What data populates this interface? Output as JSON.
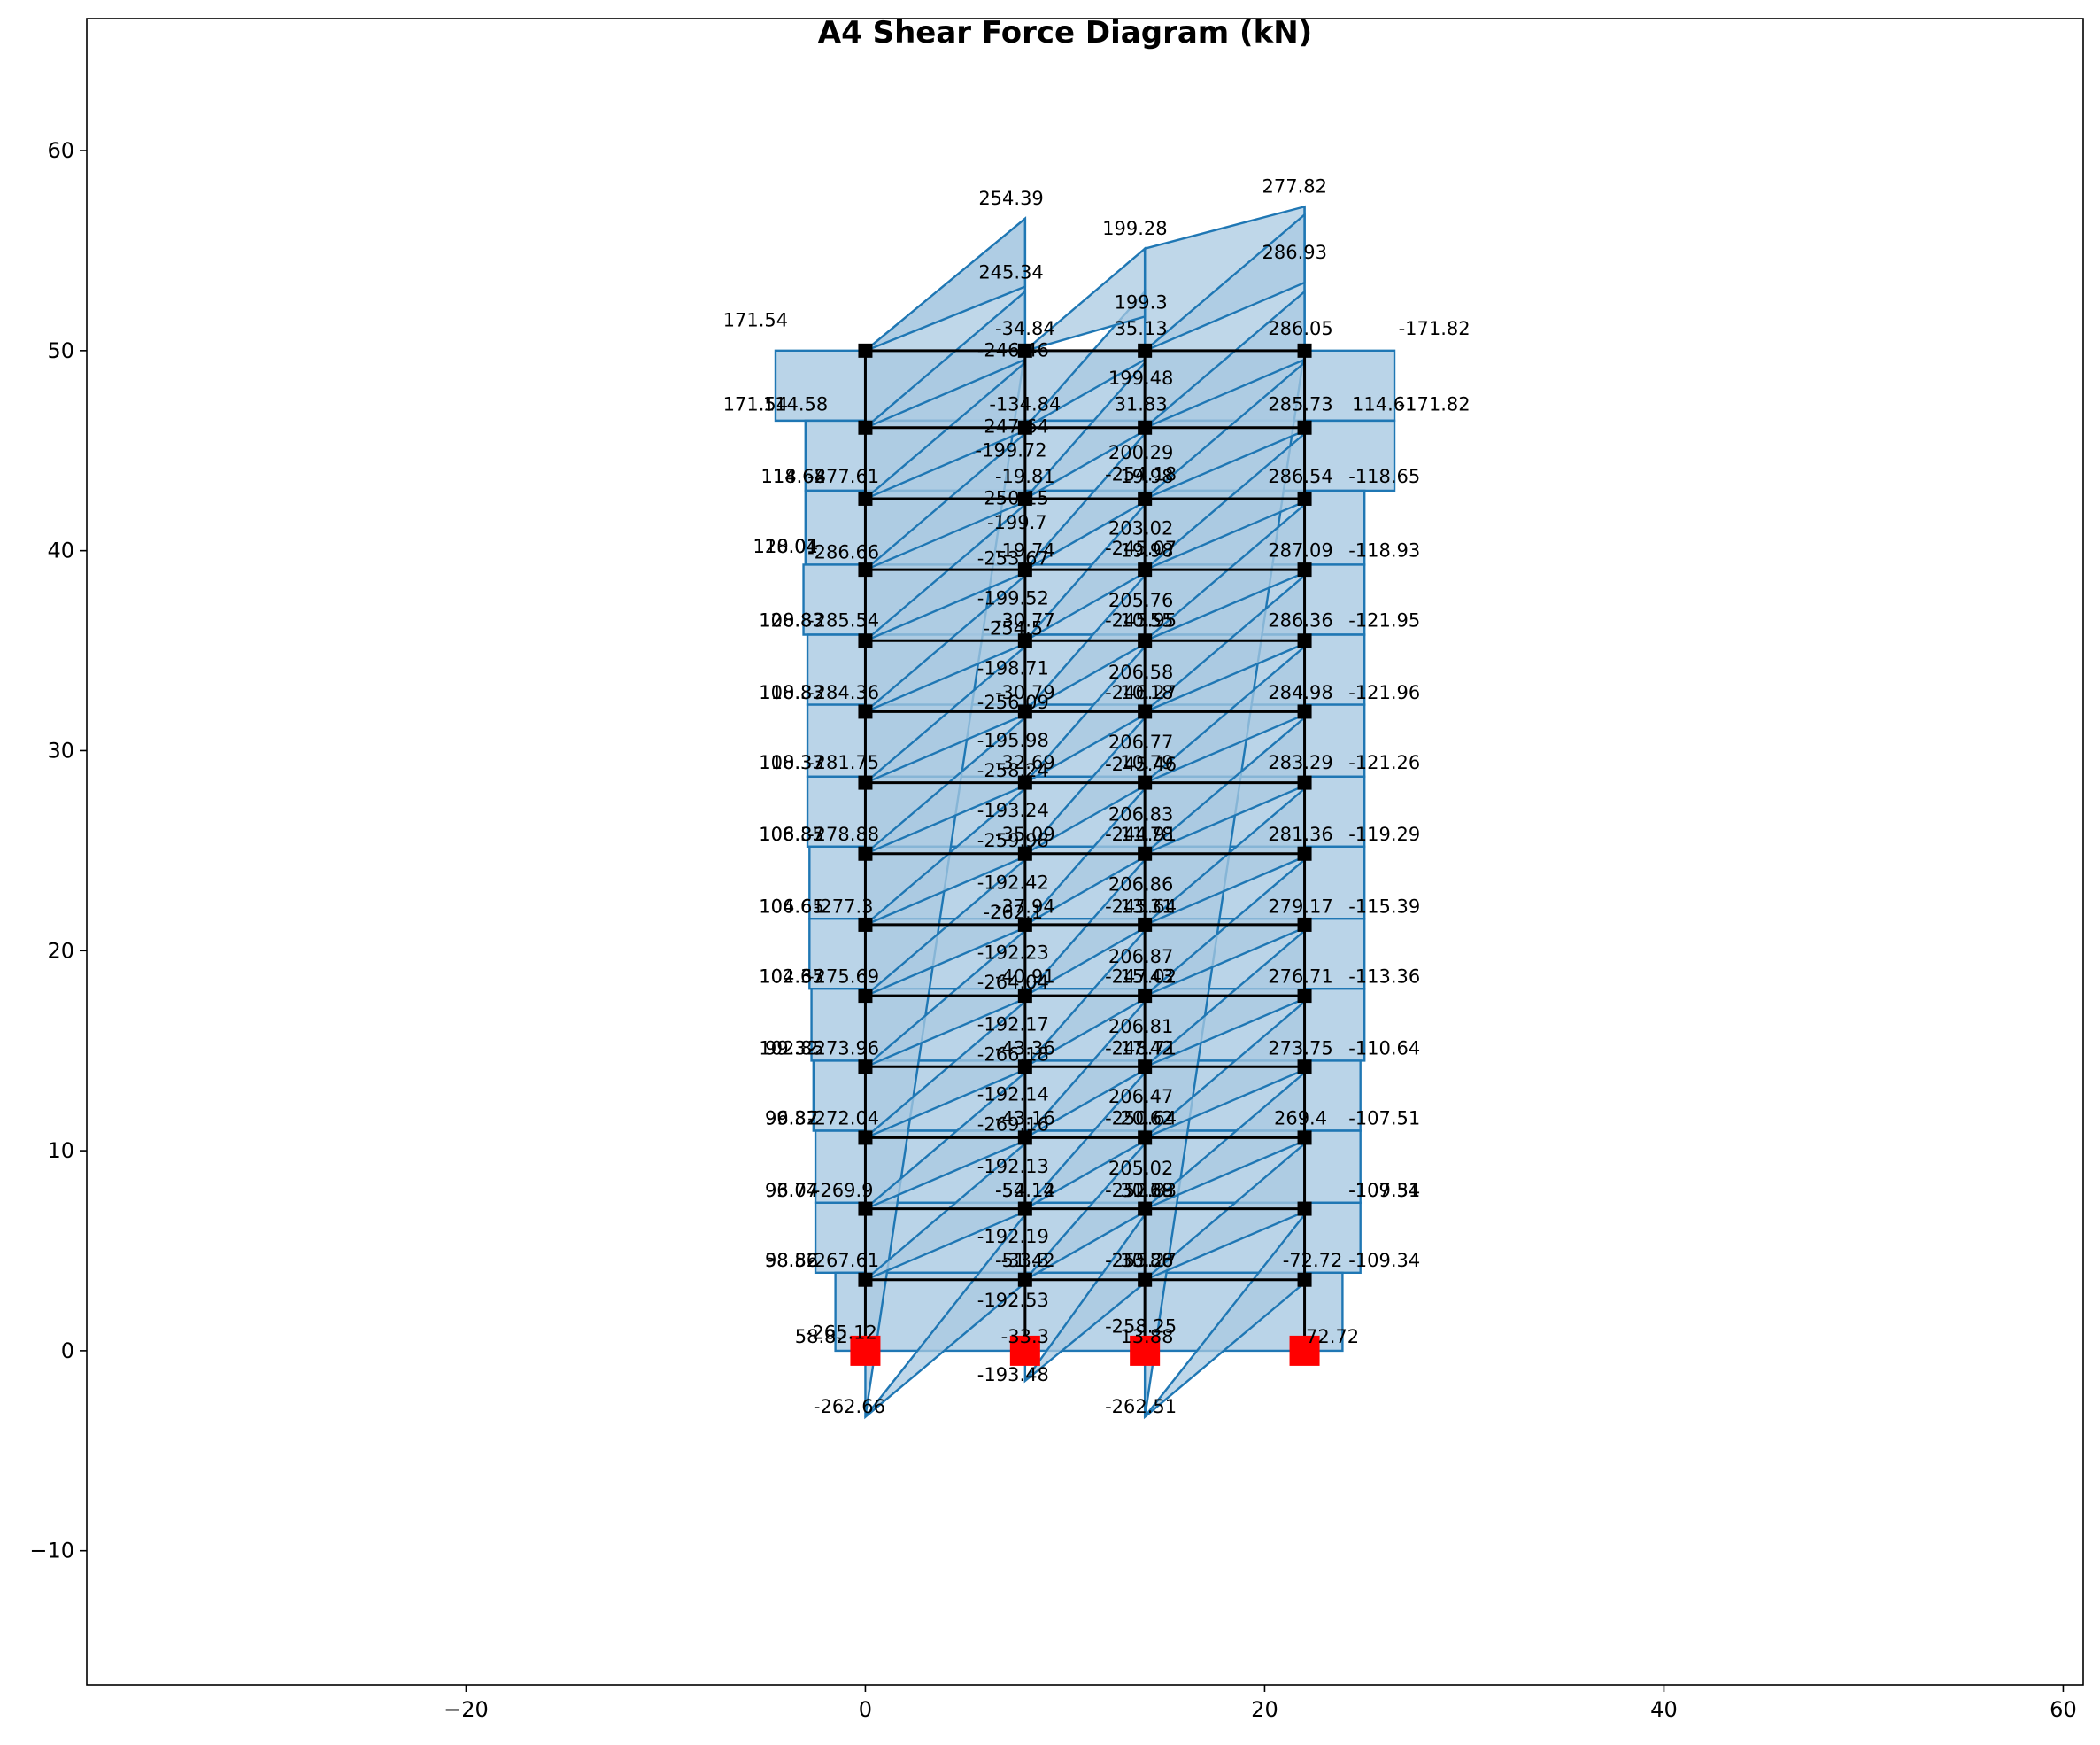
{
  "chart_data": {
    "type": "structural-shear-force-diagram",
    "title": "A4 Shear Force Diagram (kN)",
    "xlim": [
      -39,
      61
    ],
    "ylim": [
      -16.7,
      66.6
    ],
    "x_ticks": [
      -20,
      0,
      20,
      40,
      60
    ],
    "y_ticks": [
      -10,
      0,
      10,
      20,
      30,
      40,
      50,
      60
    ],
    "column_lines_x": [
      0,
      8,
      14,
      22
    ],
    "floor_levels_y": [
      3.55,
      7.1,
      10.65,
      14.2,
      17.75,
      21.3,
      24.85,
      28.4,
      31.95,
      35.5,
      39.05,
      42.6,
      46.15,
      50.0
    ],
    "supports": [
      {
        "x": 0,
        "y": 0
      },
      {
        "x": 8,
        "y": 0
      },
      {
        "x": 14,
        "y": 0
      },
      {
        "x": 22,
        "y": 0
      }
    ],
    "beam_shear_diagrams": [
      {
        "span_x": [
          -4.5,
          26.5
        ],
        "y_base": 50.0,
        "y_top": 50.0,
        "y_bottom": 46.5
      },
      {
        "span_x": [
          -3.0,
          26.5
        ],
        "y_base": 46.15,
        "y_top": 46.5,
        "y_bottom": 43.0
      },
      {
        "span_x": [
          -3.0,
          25.0
        ],
        "y_base": 42.6,
        "y_top": 43.0,
        "y_bottom": 39.3
      },
      {
        "span_x": [
          -3.1,
          25.0
        ],
        "y_base": 39.05,
        "y_top": 39.3,
        "y_bottom": 35.8
      },
      {
        "span_x": [
          -2.9,
          25.0
        ],
        "y_base": 35.5,
        "y_top": 35.8,
        "y_bottom": 32.3
      },
      {
        "span_x": [
          -2.9,
          25.0
        ],
        "y_base": 31.95,
        "y_top": 32.3,
        "y_bottom": 28.7
      },
      {
        "span_x": [
          -2.9,
          25.0
        ],
        "y_base": 28.4,
        "y_top": 28.7,
        "y_bottom": 25.2
      },
      {
        "span_x": [
          -2.8,
          25.0
        ],
        "y_base": 24.85,
        "y_top": 25.2,
        "y_bottom": 21.6
      },
      {
        "span_x": [
          -2.8,
          25.0
        ],
        "y_base": 21.3,
        "y_top": 21.6,
        "y_bottom": 18.1
      },
      {
        "span_x": [
          -2.7,
          25.0
        ],
        "y_base": 17.75,
        "y_top": 18.1,
        "y_bottom": 14.5
      },
      {
        "span_x": [
          -2.6,
          24.8
        ],
        "y_base": 14.2,
        "y_top": 14.5,
        "y_bottom": 11.0
      },
      {
        "span_x": [
          -2.5,
          24.8
        ],
        "y_base": 10.65,
        "y_top": 11.0,
        "y_bottom": 7.4
      },
      {
        "span_x": [
          -2.5,
          24.8
        ],
        "y_base": 7.1,
        "y_top": 7.4,
        "y_bottom": 3.9
      },
      {
        "span_x": [
          -1.5,
          23.9
        ],
        "y_base": 3.55,
        "y_top": 3.9,
        "y_bottom": 0.0
      }
    ],
    "column_shear_diagrams": [
      {
        "x": 0,
        "bottom_y": -3.3,
        "top_y": 50.0,
        "top_value": 171.54,
        "bottom_value": -262.66
      },
      {
        "x": 8,
        "bottom_y": -1.5,
        "top_y": 56.6,
        "top_value": 254.39,
        "bottom_value": -193.48
      },
      {
        "x": 14,
        "bottom_y": -3.3,
        "top_y": 55.1,
        "top_value": 199.28,
        "bottom_value": -262.51
      },
      {
        "x": 22,
        "bottom_y": 3.55,
        "top_y": 57.2,
        "top_value": 277.82,
        "bottom_value": 72.72
      }
    ],
    "annotations": [
      {
        "text": "171.54",
        "x": -5.5,
        "y": 51.2
      },
      {
        "text": "254.39",
        "x": 7.3,
        "y": 57.3
      },
      {
        "text": "199.28",
        "x": 13.5,
        "y": 55.8
      },
      {
        "text": "277.82",
        "x": 21.5,
        "y": 57.9
      },
      {
        "text": "245.34",
        "x": 7.3,
        "y": 53.6
      },
      {
        "text": "286.93",
        "x": 21.5,
        "y": 54.6
      },
      {
        "text": "199.3",
        "x": 13.8,
        "y": 52.1
      },
      {
        "text": "-34.84",
        "x": 8.0,
        "y": 50.8
      },
      {
        "text": "35.13",
        "x": 13.8,
        "y": 50.8
      },
      {
        "text": "-246.46",
        "x": 7.4,
        "y": 49.7
      },
      {
        "text": "286.05",
        "x": 21.8,
        "y": 50.8
      },
      {
        "text": "-171.82",
        "x": 28.5,
        "y": 50.8
      },
      {
        "text": "171.54",
        "x": -5.5,
        "y": 47.0
      },
      {
        "text": "114.58",
        "x": -3.5,
        "y": 47.0
      },
      {
        "text": "-134.84",
        "x": 8.0,
        "y": 47.0
      },
      {
        "text": "31.83",
        "x": 13.8,
        "y": 47.0
      },
      {
        "text": "199.48",
        "x": 13.8,
        "y": 48.3
      },
      {
        "text": "-247.64",
        "x": 7.4,
        "y": 45.9
      },
      {
        "text": "285.73",
        "x": 21.8,
        "y": 47.0
      },
      {
        "text": "114.61",
        "x": 26.0,
        "y": 47.0
      },
      {
        "text": "-171.82",
        "x": 28.5,
        "y": 47.0
      },
      {
        "text": "-199.72",
        "x": 7.3,
        "y": 44.7
      },
      {
        "text": "200.29",
        "x": 13.8,
        "y": 44.6
      },
      {
        "text": "-254.18",
        "x": 13.8,
        "y": 43.5
      },
      {
        "text": "118.68",
        "x": -3.6,
        "y": 43.4
      },
      {
        "text": "114.64",
        "x": -3.6,
        "y": 43.4
      },
      {
        "text": "-277.61",
        "x": -1.1,
        "y": 43.4
      },
      {
        "text": "-19.81",
        "x": 8.0,
        "y": 43.4
      },
      {
        "text": "-250.15",
        "x": 7.4,
        "y": 42.3
      },
      {
        "text": "19.98",
        "x": 14.1,
        "y": 43.4
      },
      {
        "text": "286.54",
        "x": 21.8,
        "y": 43.4
      },
      {
        "text": "-118.65",
        "x": 26.0,
        "y": 43.4
      },
      {
        "text": "-199.7",
        "x": 7.6,
        "y": 41.1
      },
      {
        "text": "203.02",
        "x": 13.8,
        "y": 40.8
      },
      {
        "text": "-245.07",
        "x": 13.8,
        "y": 39.8
      },
      {
        "text": "120.04",
        "x": -4.0,
        "y": 39.9
      },
      {
        "text": "118.01",
        "x": -4.0,
        "y": 39.9
      },
      {
        "text": "-286.66",
        "x": -1.1,
        "y": 39.6
      },
      {
        "text": "-19.74",
        "x": 8.0,
        "y": 39.7
      },
      {
        "text": "-253.67",
        "x": 7.4,
        "y": 39.3
      },
      {
        "text": "19.98",
        "x": 14.1,
        "y": 39.7
      },
      {
        "text": "287.09",
        "x": 21.8,
        "y": 39.7
      },
      {
        "text": "-118.93",
        "x": 26.0,
        "y": 39.7
      },
      {
        "text": "-199.52",
        "x": 7.4,
        "y": 37.3
      },
      {
        "text": "205.76",
        "x": 13.8,
        "y": 37.2
      },
      {
        "text": "-245.95",
        "x": 13.8,
        "y": 36.2
      },
      {
        "text": "120.83",
        "x": -3.7,
        "y": 36.2
      },
      {
        "text": "108.83",
        "x": -3.7,
        "y": 36.2
      },
      {
        "text": "-285.54",
        "x": -1.1,
        "y": 36.2
      },
      {
        "text": "-30.77",
        "x": 8.0,
        "y": 36.2
      },
      {
        "text": "-254.5",
        "x": 7.4,
        "y": 35.8
      },
      {
        "text": "10.55",
        "x": 14.1,
        "y": 36.2
      },
      {
        "text": "286.36",
        "x": 21.8,
        "y": 36.2
      },
      {
        "text": "-121.95",
        "x": 26.0,
        "y": 36.2
      },
      {
        "text": "-198.71",
        "x": 7.4,
        "y": 33.8
      },
      {
        "text": "206.58",
        "x": 13.8,
        "y": 33.6
      },
      {
        "text": "-246.27",
        "x": 13.8,
        "y": 32.6
      },
      {
        "text": "110.33",
        "x": -3.7,
        "y": 32.6
      },
      {
        "text": "108.83",
        "x": -3.7,
        "y": 32.6
      },
      {
        "text": "-284.36",
        "x": -1.1,
        "y": 32.6
      },
      {
        "text": "-30.79",
        "x": 8.0,
        "y": 32.6
      },
      {
        "text": "-256.09",
        "x": 7.4,
        "y": 32.1
      },
      {
        "text": "10.18",
        "x": 14.1,
        "y": 32.6
      },
      {
        "text": "284.98",
        "x": 21.8,
        "y": 32.6
      },
      {
        "text": "-121.96",
        "x": 26.0,
        "y": 32.6
      },
      {
        "text": "-195.98",
        "x": 7.4,
        "y": 30.2
      },
      {
        "text": "206.77",
        "x": 13.8,
        "y": 30.1
      },
      {
        "text": "-245.46",
        "x": 13.8,
        "y": 29.0
      },
      {
        "text": "110.37",
        "x": -3.7,
        "y": 29.1
      },
      {
        "text": "108.33",
        "x": -3.7,
        "y": 29.1
      },
      {
        "text": "-281.75",
        "x": -1.1,
        "y": 29.1
      },
      {
        "text": "-32.69",
        "x": 8.0,
        "y": 29.1
      },
      {
        "text": "-258.24",
        "x": 7.4,
        "y": 28.7
      },
      {
        "text": "10.79",
        "x": 14.1,
        "y": 29.1
      },
      {
        "text": "283.29",
        "x": 21.8,
        "y": 29.1
      },
      {
        "text": "-121.26",
        "x": 26.0,
        "y": 29.1
      },
      {
        "text": "-193.24",
        "x": 7.4,
        "y": 26.7
      },
      {
        "text": "206.83",
        "x": 13.8,
        "y": 26.5
      },
      {
        "text": "-244.91",
        "x": 13.8,
        "y": 25.5
      },
      {
        "text": "108.85",
        "x": -3.7,
        "y": 25.5
      },
      {
        "text": "106.37",
        "x": -3.7,
        "y": 25.5
      },
      {
        "text": "-278.88",
        "x": -1.1,
        "y": 25.5
      },
      {
        "text": "-35.09",
        "x": 8.0,
        "y": 25.5
      },
      {
        "text": "-259.98",
        "x": 7.4,
        "y": 25.2
      },
      {
        "text": "11.78",
        "x": 14.1,
        "y": 25.5
      },
      {
        "text": "281.36",
        "x": 21.8,
        "y": 25.5
      },
      {
        "text": "-119.29",
        "x": 26.0,
        "y": 25.5
      },
      {
        "text": "-192.42",
        "x": 7.4,
        "y": 23.1
      },
      {
        "text": "206.86",
        "x": 13.8,
        "y": 23.0
      },
      {
        "text": "-245.64",
        "x": 13.8,
        "y": 21.9
      },
      {
        "text": "106.65",
        "x": -3.7,
        "y": 21.9
      },
      {
        "text": "104.61",
        "x": -3.7,
        "y": 21.9
      },
      {
        "text": "-277.3",
        "x": -1.1,
        "y": 21.9
      },
      {
        "text": "-37.94",
        "x": 8.0,
        "y": 21.9
      },
      {
        "text": "-262.1",
        "x": 7.4,
        "y": 21.6
      },
      {
        "text": "13.31",
        "x": 14.1,
        "y": 21.9
      },
      {
        "text": "279.17",
        "x": 21.8,
        "y": 21.9
      },
      {
        "text": "-115.39",
        "x": 26.0,
        "y": 21.9
      },
      {
        "text": "-192.23",
        "x": 7.4,
        "y": 19.6
      },
      {
        "text": "206.87",
        "x": 13.8,
        "y": 19.4
      },
      {
        "text": "-247.02",
        "x": 13.8,
        "y": 18.4
      },
      {
        "text": "104.65",
        "x": -3.7,
        "y": 18.4
      },
      {
        "text": "102.37",
        "x": -3.7,
        "y": 18.4
      },
      {
        "text": "-275.69",
        "x": -1.1,
        "y": 18.4
      },
      {
        "text": "-40.91",
        "x": 8.0,
        "y": 18.4
      },
      {
        "text": "-264.04",
        "x": 7.4,
        "y": 18.1
      },
      {
        "text": "15.43",
        "x": 14.1,
        "y": 18.4
      },
      {
        "text": "276.71",
        "x": 21.8,
        "y": 18.4
      },
      {
        "text": "-113.36",
        "x": 26.0,
        "y": 18.4
      },
      {
        "text": "-192.17",
        "x": 7.4,
        "y": 16.0
      },
      {
        "text": "206.81",
        "x": 13.8,
        "y": 15.9
      },
      {
        "text": "-248.71",
        "x": 13.8,
        "y": 14.8
      },
      {
        "text": "102.85",
        "x": -3.7,
        "y": 14.8
      },
      {
        "text": "99.32",
        "x": -3.7,
        "y": 14.8
      },
      {
        "text": "-273.96",
        "x": -1.1,
        "y": 14.8
      },
      {
        "text": "-43.36",
        "x": 8.0,
        "y": 14.8
      },
      {
        "text": "-266.18",
        "x": 7.4,
        "y": 14.5
      },
      {
        "text": "17.42",
        "x": 14.1,
        "y": 14.8
      },
      {
        "text": "273.75",
        "x": 21.8,
        "y": 14.8
      },
      {
        "text": "-110.64",
        "x": 26.0,
        "y": 14.8
      },
      {
        "text": "-192.14",
        "x": 7.4,
        "y": 12.5
      },
      {
        "text": "206.47",
        "x": 13.8,
        "y": 12.4
      },
      {
        "text": "-250.64",
        "x": 13.8,
        "y": 11.3
      },
      {
        "text": "99.87",
        "x": -3.7,
        "y": 11.3
      },
      {
        "text": "96.32",
        "x": -3.7,
        "y": 11.3
      },
      {
        "text": "-272.04",
        "x": -1.1,
        "y": 11.3
      },
      {
        "text": "-43.16",
        "x": 8.0,
        "y": 11.3
      },
      {
        "text": "-269.16",
        "x": 7.4,
        "y": 11.0
      },
      {
        "text": "20.62",
        "x": 14.1,
        "y": 11.3
      },
      {
        "text": "269.4",
        "x": 21.8,
        "y": 11.3
      },
      {
        "text": "-107.51",
        "x": 26.0,
        "y": 11.3
      },
      {
        "text": "-192.13",
        "x": 7.4,
        "y": 8.9
      },
      {
        "text": "205.02",
        "x": 13.8,
        "y": 8.8
      },
      {
        "text": "-252.83",
        "x": 13.8,
        "y": 7.7
      },
      {
        "text": "96.07",
        "x": -3.7,
        "y": 7.7
      },
      {
        "text": "93.74",
        "x": -3.7,
        "y": 7.7
      },
      {
        "text": "-269.9",
        "x": -1.1,
        "y": 7.7
      },
      {
        "text": "-52.12",
        "x": 8.0,
        "y": 7.7
      },
      {
        "text": "-54.14",
        "x": 8.0,
        "y": 7.7
      },
      {
        "text": "31.38",
        "x": 14.1,
        "y": 7.7
      },
      {
        "text": "30.69",
        "x": 14.1,
        "y": 7.7
      },
      {
        "text": "-109.34",
        "x": 26.0,
        "y": 7.7
      },
      {
        "text": "-107.51",
        "x": 26.0,
        "y": 7.7
      },
      {
        "text": "-192.19",
        "x": 7.4,
        "y": 5.4
      },
      {
        "text": "-255.27",
        "x": 13.8,
        "y": 4.2
      },
      {
        "text": "98.56",
        "x": -3.7,
        "y": 4.2
      },
      {
        "text": "58.82",
        "x": -3.7,
        "y": 4.2
      },
      {
        "text": "-267.61",
        "x": -1.1,
        "y": 4.2
      },
      {
        "text": "-51.42",
        "x": 8.0,
        "y": 4.2
      },
      {
        "text": "-33.3",
        "x": 8.0,
        "y": 4.2
      },
      {
        "text": "30.36",
        "x": 14.1,
        "y": 4.2
      },
      {
        "text": "13.88",
        "x": 14.1,
        "y": 4.2
      },
      {
        "text": "-72.72",
        "x": 22.4,
        "y": 4.2
      },
      {
        "text": "-109.34",
        "x": 26.0,
        "y": 4.2
      },
      {
        "text": "-192.53",
        "x": 7.4,
        "y": 2.2
      },
      {
        "text": "-258.25",
        "x": 13.8,
        "y": 0.9
      },
      {
        "text": "58.82",
        "x": -2.2,
        "y": 0.4
      },
      {
        "text": "-265.12",
        "x": -1.2,
        "y": 0.6
      },
      {
        "text": "-33.3",
        "x": 8.0,
        "y": 0.4
      },
      {
        "text": "13.88",
        "x": 14.1,
        "y": 0.4
      },
      {
        "text": "72.72",
        "x": 23.4,
        "y": 0.4
      },
      {
        "text": "-193.48",
        "x": 7.4,
        "y": -1.5
      },
      {
        "text": "-262.66",
        "x": -0.8,
        "y": -3.1
      },
      {
        "text": "-262.51",
        "x": 13.8,
        "y": -3.1
      }
    ]
  }
}
